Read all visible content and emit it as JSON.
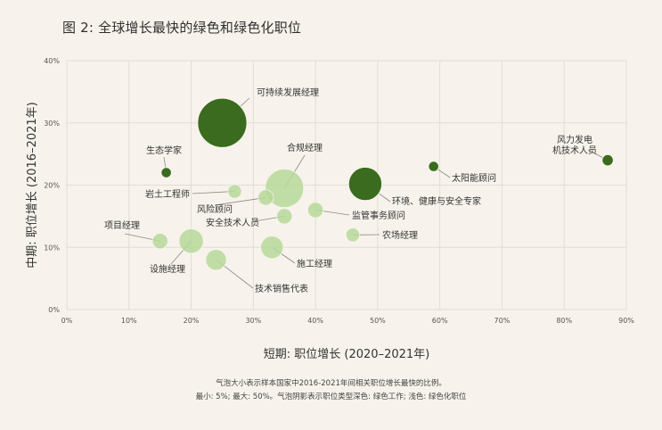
{
  "title": "图 2: 全球增长最快的绿色和绿色化职位",
  "notes": [
    "气泡大小表示样本国家中2016-2021年间相关职位增长最快的比例。",
    "最小: 5%; 最大: 50%。气泡阴影表示职位类型深色: 绿色工作; 浅色: 绿色化职位"
  ],
  "colors": {
    "dark": "#3a6b1e",
    "light": "#b7d89a",
    "grid": "#e2ddd3",
    "leader": "#888888"
  },
  "chart_data": {
    "type": "scatter",
    "xlabel": "短期: 职位增长 (2020–2021年)",
    "ylabel": "中期: 职位增长 (2016–2021年)",
    "xlim": [
      0,
      90
    ],
    "ylim": [
      0,
      40
    ],
    "xticks": [
      "0%",
      "10%",
      "20%",
      "30%",
      "40%",
      "50%",
      "60%",
      "70%",
      "80%",
      "90%"
    ],
    "yticks": [
      "0%",
      "10%",
      "20%",
      "30%",
      "40%"
    ],
    "points": [
      {
        "label": "可持续发展经理",
        "x": 25,
        "y": 30,
        "size": 50,
        "type": "green"
      },
      {
        "label": "环境、健康与安全专家",
        "x": 48,
        "y": 20.2,
        "size": 32,
        "type": "green"
      },
      {
        "label": "风力发电机技术人员",
        "x": 87,
        "y": 24,
        "size": 7,
        "type": "green"
      },
      {
        "label": "太阳能顾问",
        "x": 59,
        "y": 23,
        "size": 6,
        "type": "green"
      },
      {
        "label": "生态学家",
        "x": 16,
        "y": 22,
        "size": 6,
        "type": "green"
      },
      {
        "label": "合规经理",
        "x": 35,
        "y": 19.5,
        "size": 38,
        "type": "greening"
      },
      {
        "label": "岩土工程师",
        "x": 27,
        "y": 19,
        "size": 10,
        "type": "greening"
      },
      {
        "label": "风险顾问",
        "x": 32,
        "y": 18,
        "size": 12,
        "type": "greening"
      },
      {
        "label": "安全技术人员",
        "x": 35,
        "y": 15,
        "size": 12,
        "type": "greening"
      },
      {
        "label": "监管事务顾问",
        "x": 40,
        "y": 16,
        "size": 12,
        "type": "greening"
      },
      {
        "label": "农场经理",
        "x": 46,
        "y": 12,
        "size": 10,
        "type": "greening"
      },
      {
        "label": "项目经理",
        "x": 15,
        "y": 11,
        "size": 12,
        "type": "greening"
      },
      {
        "label": "设施经理",
        "x": 20,
        "y": 11,
        "size": 22,
        "type": "greening"
      },
      {
        "label": "技术销售代表",
        "x": 24,
        "y": 8,
        "size": 18,
        "type": "greening"
      },
      {
        "label": "施工经理",
        "x": 33,
        "y": 10,
        "size": 20,
        "type": "greening"
      }
    ]
  }
}
